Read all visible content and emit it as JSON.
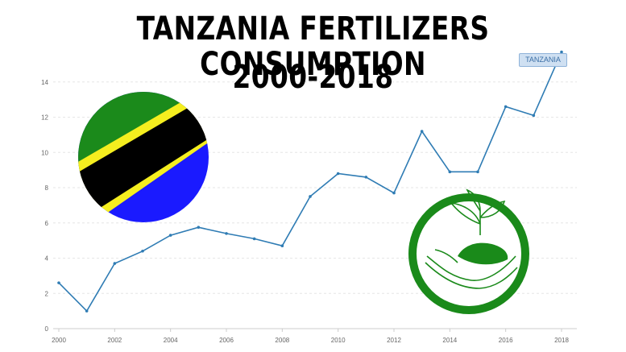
{
  "title_line1": "TANZANIA FERTILIZERS CONSUMPTION",
  "title_line2": "2000-2018",
  "colors": {
    "line": "#2f7cb4",
    "grid": "#e6e6e6",
    "flag_green": "#1b8a1b",
    "flag_blue": "#1a1aff",
    "flag_yellow": "#f5ee1f",
    "logo_green": "#1a8a1a"
  },
  "icons": {
    "flag": "tanzania-flag-icon",
    "logo": "plant-in-hand-icon"
  },
  "chart_data": {
    "type": "line",
    "title": "TANZANIA FERTILIZERS CONSUMPTION 2000-2018",
    "xlabel": "",
    "ylabel": "",
    "legend": "top-right",
    "grid": true,
    "x": [
      2000,
      2001,
      2002,
      2003,
      2004,
      2005,
      2006,
      2007,
      2008,
      2009,
      2010,
      2011,
      2012,
      2013,
      2014,
      2015,
      2016,
      2017,
      2018
    ],
    "series": [
      {
        "name": "TANZANIA",
        "values": [
          2.6,
          1.0,
          3.7,
          4.4,
          5.3,
          5.75,
          5.4,
          5.1,
          4.7,
          7.5,
          8.8,
          8.6,
          7.7,
          11.2,
          8.9,
          8.9,
          12.6,
          12.1,
          15.7
        ]
      }
    ],
    "x_ticks": [
      "2000",
      "2002",
      "2004",
      "2006",
      "2008",
      "2010",
      "2012",
      "2014",
      "2016",
      "2018"
    ],
    "y_ticks": [
      "0",
      "2",
      "4",
      "6",
      "8",
      "10",
      "12",
      "14"
    ],
    "ylim": [
      0,
      16
    ],
    "xlim": [
      2000,
      2018
    ]
  }
}
